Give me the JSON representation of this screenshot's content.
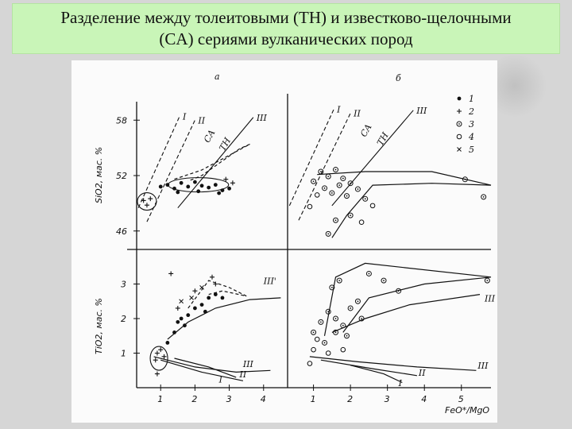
{
  "title": {
    "line1": "Разделение между толеитовыми (TH)  и известково-щелочными",
    "line2": "(CA) сериями вулканических пород"
  },
  "chart_data": {
    "type": "scatter",
    "panels": {
      "a_label": "а",
      "b_label": "б"
    },
    "xlabel": "FeO*/MgO",
    "ylabel_top": "SiO2, мас. %",
    "ylabel_bottom": "TiO2, мас. %",
    "xlim": [
      0.3,
      4.7
    ],
    "xlim_right": [
      0.3,
      5.8
    ],
    "ylim_top": [
      44,
      60
    ],
    "ylim_bottom": [
      0,
      4
    ],
    "x_ticks_left": [
      "1",
      "2",
      "3",
      "4"
    ],
    "x_ticks_right": [
      "1",
      "2",
      "3",
      "4",
      "5"
    ],
    "y_ticks_top": [
      "58",
      "52",
      "46"
    ],
    "y_ticks_bottom": [
      "3",
      "2",
      "1"
    ],
    "line_labels_top": [
      "I",
      "II",
      "III"
    ],
    "series_labels_top": [
      "CA",
      "TH"
    ],
    "line_labels_bottom_a": [
      "III'",
      "III",
      "II",
      "I"
    ],
    "line_labels_bottom_b": [
      "III",
      "II",
      "I"
    ],
    "legend": [
      {
        "symbol": "•",
        "label": "1"
      },
      {
        "symbol": "+",
        "label": "2"
      },
      {
        "symbol": "⊙",
        "label": "3"
      },
      {
        "symbol": "○",
        "label": "4"
      },
      {
        "symbol": "×",
        "label": "5"
      }
    ],
    "boundary_lines_top": [
      {
        "name": "I",
        "points": [
          [
            0.35,
            48.5
          ],
          [
            1.55,
            58.4
          ]
        ]
      },
      {
        "name": "II",
        "points": [
          [
            0.6,
            47.0
          ],
          [
            2.0,
            58.0
          ]
        ]
      },
      {
        "name": "III",
        "points": [
          [
            1.5,
            48.5
          ],
          [
            3.7,
            58.3
          ]
        ]
      }
    ],
    "series_a_top": [
      {
        "name": "1",
        "points": [
          [
            1.0,
            50.8
          ],
          [
            1.2,
            51.0
          ],
          [
            1.4,
            50.6
          ],
          [
            1.6,
            51.2
          ],
          [
            1.8,
            50.8
          ],
          [
            2.0,
            51.3
          ],
          [
            2.2,
            50.9
          ],
          [
            2.4,
            50.7
          ],
          [
            2.6,
            51.0
          ],
          [
            2.8,
            50.4
          ],
          [
            3.0,
            50.6
          ],
          [
            1.5,
            50.2
          ],
          [
            2.1,
            50.3
          ],
          [
            2.7,
            50.1
          ]
        ]
      },
      {
        "name": "2",
        "points": [
          [
            0.5,
            49.3
          ],
          [
            0.6,
            48.8
          ],
          [
            0.7,
            49.5
          ],
          [
            3.1,
            51.2
          ],
          [
            2.9,
            51.6
          ]
        ]
      }
    ],
    "series_b_top": [
      {
        "name": "3",
        "points": [
          [
            1.0,
            51.0
          ],
          [
            1.2,
            52.0
          ],
          [
            1.4,
            51.5
          ],
          [
            1.6,
            52.2
          ],
          [
            1.8,
            51.3
          ],
          [
            2.0,
            50.8
          ],
          [
            1.3,
            50.3
          ],
          [
            1.5,
            49.8
          ],
          [
            1.7,
            50.6
          ],
          [
            1.9,
            49.5
          ],
          [
            2.2,
            50.2
          ],
          [
            2.4,
            49.2
          ],
          [
            2.0,
            47.5
          ],
          [
            1.6,
            47.0
          ],
          [
            1.4,
            45.6
          ],
          [
            5.1,
            51.2
          ],
          [
            5.6,
            49.4
          ]
        ]
      },
      {
        "name": "4",
        "points": [
          [
            0.9,
            48.4
          ],
          [
            1.1,
            49.6
          ],
          [
            2.6,
            48.5
          ],
          [
            2.3,
            46.8
          ]
        ]
      }
    ],
    "series_a_bottom": [
      {
        "name": "1",
        "points": [
          [
            1.2,
            1.3
          ],
          [
            1.4,
            1.6
          ],
          [
            1.5,
            1.9
          ],
          [
            1.6,
            2.0
          ],
          [
            1.8,
            2.1
          ],
          [
            2.0,
            2.3
          ],
          [
            2.2,
            2.4
          ],
          [
            2.4,
            2.6
          ],
          [
            2.6,
            2.7
          ],
          [
            2.8,
            2.6
          ],
          [
            1.7,
            1.8
          ],
          [
            2.3,
            2.2
          ]
        ]
      },
      {
        "name": "2",
        "points": [
          [
            0.9,
            1.0
          ],
          [
            1.0,
            1.1
          ],
          [
            1.1,
            0.9
          ],
          [
            0.85,
            0.8
          ],
          [
            0.9,
            0.4
          ],
          [
            1.5,
            2.3
          ],
          [
            2.0,
            2.8
          ],
          [
            2.6,
            3.0
          ],
          [
            1.3,
            3.3
          ],
          [
            2.5,
            3.2
          ]
        ]
      },
      {
        "name": "5",
        "points": [
          [
            1.6,
            2.5
          ],
          [
            1.9,
            2.6
          ],
          [
            2.2,
            2.9
          ]
        ]
      }
    ],
    "series_b_bottom": [
      {
        "name": "3",
        "points": [
          [
            1.0,
            1.6
          ],
          [
            1.2,
            1.9
          ],
          [
            1.4,
            2.2
          ],
          [
            1.6,
            2.0
          ],
          [
            1.8,
            1.8
          ],
          [
            2.0,
            2.3
          ],
          [
            2.2,
            2.5
          ],
          [
            1.5,
            2.9
          ],
          [
            1.7,
            3.1
          ],
          [
            2.5,
            3.3
          ],
          [
            2.9,
            3.1
          ],
          [
            3.3,
            2.8
          ],
          [
            5.7,
            3.1
          ],
          [
            1.3,
            1.3
          ],
          [
            1.6,
            1.6
          ],
          [
            1.9,
            1.5
          ],
          [
            2.3,
            2.0
          ]
        ]
      },
      {
        "name": "4",
        "points": [
          [
            1.0,
            1.1
          ],
          [
            1.1,
            1.4
          ],
          [
            1.4,
            1.0
          ],
          [
            1.8,
            1.1
          ],
          [
            0.9,
            0.7
          ]
        ]
      }
    ]
  }
}
